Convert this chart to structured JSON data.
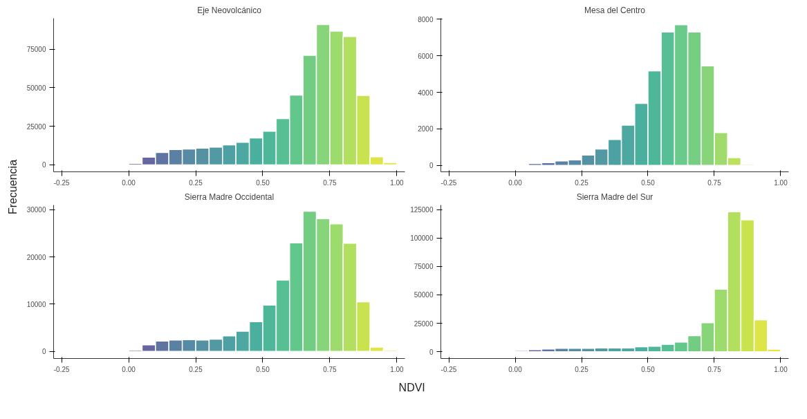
{
  "chart_data": [
    {
      "type": "histogram",
      "title": "Eje Neovolcánico",
      "ylabel": "Frecuencia",
      "xlabel": "NDVI",
      "bins": [
        0,
        0.05,
        0.1,
        0.15,
        0.2,
        0.25,
        0.3,
        0.35,
        0.4,
        0.45,
        0.5,
        0.55,
        0.6,
        0.65,
        0.7,
        0.75,
        0.8,
        0.85,
        0.9,
        0.95,
        1.0
      ],
      "values": [
        1000,
        5000,
        8000,
        10000,
        10300,
        10800,
        11500,
        13000,
        14700,
        17500,
        21800,
        30000,
        45300,
        71000,
        91000,
        86700,
        83200,
        45000,
        5300,
        1500
      ],
      "colors": [
        "#6e5fa0",
        "#6667a1",
        "#5f74a2",
        "#5a80a4",
        "#578aa4",
        "#5492a3",
        "#5299a3",
        "#4ea1a2",
        "#4ca8a0",
        "#4aaf9e",
        "#4eb799",
        "#56bf93",
        "#62c78b",
        "#72cd82",
        "#88d47a",
        "#9ddb6d",
        "#b2df5e",
        "#c9e34f",
        "#dde548",
        "#ebe544"
      ],
      "xlim": [
        -0.28,
        1.03
      ],
      "xticks": [
        {
          "value": -0.25,
          "label": "-0.25"
        },
        {
          "value": 0,
          "label": "0.00"
        },
        {
          "value": 0.25,
          "label": "0.25"
        },
        {
          "value": 0.5,
          "label": "0.50"
        },
        {
          "value": 0.75,
          "label": "0.75"
        },
        {
          "value": 1,
          "label": "1.00"
        }
      ],
      "ylim": [
        -4500,
        95000
      ],
      "yticks": [
        0,
        25000,
        50000,
        75000
      ]
    },
    {
      "type": "histogram",
      "title": "Mesa del Centro",
      "bins": [
        0,
        0.05,
        0.1,
        0.15,
        0.2,
        0.25,
        0.3,
        0.35,
        0.4,
        0.45,
        0.5,
        0.55,
        0.6,
        0.65,
        0.7,
        0.75,
        0.8,
        0.85,
        0.9
      ],
      "values": [
        50,
        100,
        150,
        250,
        300,
        570,
        900,
        1420,
        2200,
        3400,
        5170,
        7300,
        7700,
        7300,
        5450,
        1800,
        430,
        70
      ],
      "colors": [
        "#6e5fa0",
        "#5f68a2",
        "#5a72a3",
        "#5a80a4",
        "#578aa4",
        "#5492a3",
        "#5299a3",
        "#4ea1a2",
        "#4ca8a0",
        "#4aaf9e",
        "#4eb799",
        "#56bf93",
        "#6aca8b",
        "#76ce82",
        "#88d47a",
        "#a0db6c",
        "#bbe25a",
        "#cde34f"
      ],
      "xlim": [
        -0.28,
        1.03
      ],
      "xticks": [
        {
          "value": -0.25,
          "label": "-0.25"
        },
        {
          "value": 0,
          "label": "0.00"
        },
        {
          "value": 0.25,
          "label": "0.25"
        },
        {
          "value": 0.5,
          "label": "0.50"
        },
        {
          "value": 0.75,
          "label": "0.75"
        },
        {
          "value": 1,
          "label": "1.00"
        }
      ],
      "ylim": [
        -350,
        8050
      ],
      "yticks": [
        0,
        2000,
        4000,
        6000,
        8000
      ]
    },
    {
      "type": "histogram",
      "title": "Sierra Madre Occidental",
      "bins": [
        0,
        0.05,
        0.1,
        0.15,
        0.2,
        0.25,
        0.3,
        0.35,
        0.4,
        0.45,
        0.5,
        0.55,
        0.6,
        0.65,
        0.7,
        0.75,
        0.8,
        0.85,
        0.9,
        0.95,
        1.0
      ],
      "values": [
        300,
        1400,
        2200,
        2400,
        2500,
        2400,
        2600,
        3300,
        4300,
        6300,
        9800,
        15100,
        23000,
        29700,
        28100,
        27000,
        22900,
        10500,
        900,
        300
      ],
      "colors": [
        "#6e5fa0",
        "#6667a1",
        "#5f74a2",
        "#5a80a4",
        "#578aa4",
        "#5492a3",
        "#5299a3",
        "#4ea1a2",
        "#4ca8a0",
        "#4aaf9e",
        "#4eb799",
        "#56bf93",
        "#62c78b",
        "#72cd82",
        "#88d47a",
        "#9ddb6d",
        "#b2df5e",
        "#c9e34f",
        "#dde548",
        "#ebe544"
      ],
      "xlim": [
        -0.28,
        1.03
      ],
      "xticks": [
        {
          "value": -0.25,
          "label": "-0.25"
        },
        {
          "value": 0,
          "label": "0.00"
        },
        {
          "value": 0.25,
          "label": "0.25"
        },
        {
          "value": 0.5,
          "label": "0.50"
        },
        {
          "value": 0.75,
          "label": "0.75"
        },
        {
          "value": 1,
          "label": "1.00"
        }
      ],
      "ylim": [
        -1500,
        31000
      ],
      "yticks": [
        0,
        10000,
        20000,
        30000
      ]
    },
    {
      "type": "histogram",
      "title": "Sierra Madre del Sur",
      "bins": [
        0,
        0.05,
        0.1,
        0.15,
        0.2,
        0.25,
        0.3,
        0.35,
        0.4,
        0.45,
        0.5,
        0.55,
        0.6,
        0.65,
        0.7,
        0.75,
        0.8,
        0.85,
        0.9,
        0.95,
        1.0
      ],
      "values": [
        1000,
        1800,
        2300,
        2900,
        2900,
        2900,
        3300,
        3300,
        3300,
        4300,
        4800,
        6400,
        8400,
        14000,
        25500,
        55000,
        123000,
        116000,
        28000,
        2200
      ],
      "colors": [
        "#6e5fa0",
        "#6667a1",
        "#5f74a2",
        "#5a80a4",
        "#578aa4",
        "#5492a3",
        "#5299a3",
        "#4ea1a2",
        "#4ca8a0",
        "#4aaf9e",
        "#4eb799",
        "#56bf93",
        "#62c78b",
        "#72cd82",
        "#88d47a",
        "#9ddb6d",
        "#b2df5e",
        "#c9e34f",
        "#dde548",
        "#ebe544"
      ],
      "xlim": [
        -0.28,
        1.03
      ],
      "xticks": [
        {
          "value": -0.25,
          "label": "-0.25"
        },
        {
          "value": 0,
          "label": "0.00"
        },
        {
          "value": 0.25,
          "label": "0.25"
        },
        {
          "value": 0.5,
          "label": "0.50"
        },
        {
          "value": 0.75,
          "label": "0.75"
        },
        {
          "value": 1,
          "label": "1.00"
        }
      ],
      "ylim": [
        -6000,
        129000
      ],
      "yticks": [
        0,
        25000,
        50000,
        75000,
        100000,
        125000
      ]
    }
  ]
}
